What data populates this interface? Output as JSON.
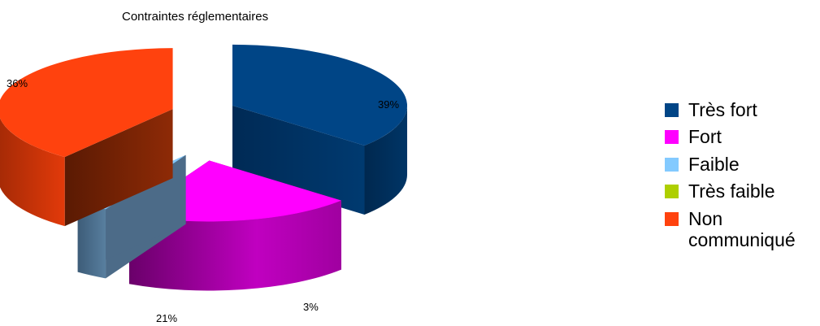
{
  "chart_data": {
    "type": "pie",
    "title": "Contraintes réglementaires",
    "categories": [
      "Très fort",
      "Fort",
      "Faible",
      "Très faible",
      "Non communiqué"
    ],
    "values": [
      36,
      21,
      3,
      0,
      39
    ],
    "value_labels": [
      "36%",
      "21%",
      "3%",
      "",
      "39%"
    ],
    "colors": [
      "#004586",
      "#ff00ff",
      "#83caff",
      "#aecf00",
      "#ff420e"
    ],
    "legend_position": "right",
    "style": "exploded-3d"
  }
}
